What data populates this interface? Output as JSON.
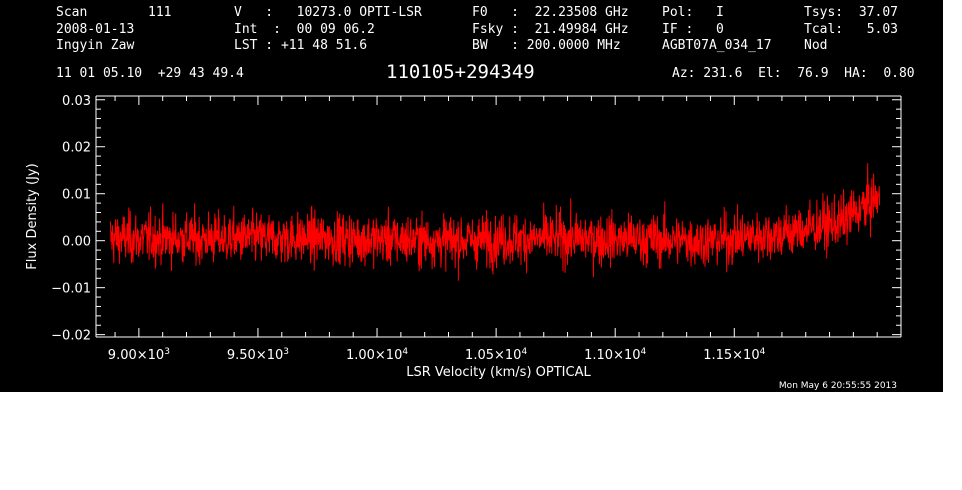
{
  "header": {
    "scan_label": "Scan",
    "scan_value": "111",
    "date": "2008-01-13",
    "observer": "Ingyin Zaw",
    "v_line": "V   :   10273.0 OPTI-LSR",
    "int_line": "Int  :  00 09 06.2",
    "lst_line": "LST : +11 48 51.6",
    "f0_line": "F0   :  22.23508 GHz",
    "fsky_line": "Fsky :  21.49984 GHz",
    "bw_line": "BW   : 200.0000 MHz",
    "pol_label": "Pol:",
    "pol_value": "I",
    "if_label": "IF :",
    "if_value": "0",
    "project": "AGBT07A_034_17",
    "tsys_label": "Tsys:",
    "tsys_value": "37.07",
    "tcal_label": "Tcal:",
    "tcal_value": "5.03",
    "mode": "Nod",
    "coords": "11 01 05.10  +29 43 49.4",
    "source": "110105+294349",
    "azel": "Az: 231.6  El:  76.9  HA:  0.80",
    "timestamp": "Mon May  6 20:55:55 2013"
  },
  "chart_data": {
    "type": "line",
    "xlabel": "LSR Velocity (km/s) OPTICAL",
    "ylabel": "Flux Density (Jy)",
    "xlim": [
      8820,
      12200
    ],
    "ylim": [
      -0.0205,
      0.0308
    ],
    "xticks": [
      9000,
      9500,
      10000,
      10500,
      11000,
      11500
    ],
    "xtick_labels": [
      {
        "m": "9.00×10",
        "e": "3"
      },
      {
        "m": "9.50×10",
        "e": "3"
      },
      {
        "m": "1.00×10",
        "e": "4"
      },
      {
        "m": "1.05×10",
        "e": "4"
      },
      {
        "m": "1.10×10",
        "e": "4"
      },
      {
        "m": "1.15×10",
        "e": "4"
      }
    ],
    "yticks": [
      -0.02,
      -0.01,
      0.0,
      0.01,
      0.02,
      0.03
    ],
    "ytick_labels": [
      "−0.02",
      "−0.01",
      "0.00",
      "0.01",
      "0.02",
      "0.03"
    ],
    "grid": false,
    "series": [
      {
        "color": "#ff0000",
        "x_range": [
          8880,
          12110
        ],
        "noise_rms_jy": 0.0045,
        "baseline_jy": 0.0,
        "profile": [
          [
            8880,
            0.0005
          ],
          [
            9200,
            0.0005
          ],
          [
            9800,
            0.0005
          ],
          [
            10300,
            0.0
          ],
          [
            10800,
            0.0005
          ],
          [
            11400,
            0.0
          ],
          [
            11700,
            0.0015
          ],
          [
            11950,
            0.004
          ],
          [
            12110,
            0.0095
          ]
        ]
      }
    ]
  }
}
